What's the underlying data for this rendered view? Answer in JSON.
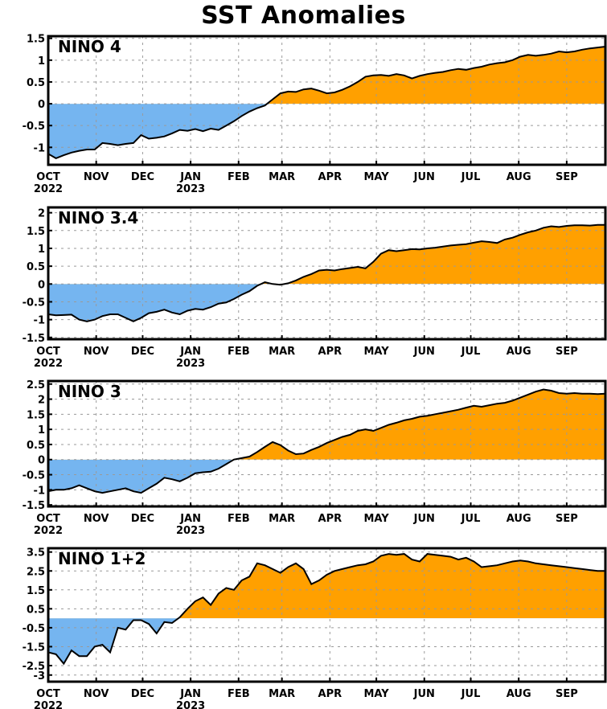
{
  "page": {
    "title": "SST Anomalies"
  },
  "chart_data": [
    {
      "type": "area",
      "title": "NINO 4",
      "ylim": [
        -1.4,
        1.55
      ],
      "yticks": [
        -1,
        -0.5,
        0,
        0.5,
        1,
        1.5
      ],
      "ytick_labels": [
        "-1",
        "-0.5",
        "0",
        "0.5",
        "1",
        "1.5"
      ],
      "grid": true,
      "x": [
        0,
        5,
        10,
        15,
        20,
        25,
        30,
        35,
        40,
        45,
        50,
        55,
        60,
        65,
        70,
        75,
        80,
        85,
        90,
        95,
        100,
        105,
        110,
        115,
        120,
        125,
        130,
        135,
        140,
        145,
        150,
        155,
        160,
        165,
        170,
        175,
        180,
        185,
        190,
        195,
        200,
        205,
        210,
        215,
        220,
        225,
        230,
        235,
        240,
        245,
        250,
        255,
        260,
        265,
        270,
        275,
        280,
        285,
        290,
        295,
        300,
        305,
        310,
        315,
        320,
        325,
        330,
        335,
        340,
        345,
        350,
        355,
        360
      ],
      "values": [
        -1.15,
        -1.25,
        -1.18,
        -1.12,
        -1.08,
        -1.05,
        -1.05,
        -0.9,
        -0.92,
        -0.95,
        -0.92,
        -0.9,
        -0.72,
        -0.8,
        -0.78,
        -0.75,
        -0.68,
        -0.6,
        -0.62,
        -0.58,
        -0.63,
        -0.57,
        -0.6,
        -0.5,
        -0.4,
        -0.28,
        -0.18,
        -0.1,
        -0.04,
        0.1,
        0.24,
        0.28,
        0.27,
        0.33,
        0.35,
        0.3,
        0.24,
        0.26,
        0.32,
        0.4,
        0.5,
        0.62,
        0.65,
        0.66,
        0.64,
        0.68,
        0.65,
        0.58,
        0.64,
        0.68,
        0.71,
        0.73,
        0.77,
        0.8,
        0.78,
        0.82,
        0.85,
        0.9,
        0.93,
        0.95,
        1.0,
        1.08,
        1.12,
        1.1,
        1.12,
        1.15,
        1.2,
        1.18,
        1.2,
        1.24,
        1.27,
        1.29,
        1.31
      ],
      "colors": {
        "positive": "#ffa000",
        "negative": "#75b5f0"
      }
    },
    {
      "type": "area",
      "title": "NINO 3.4",
      "ylim": [
        -1.55,
        2.15
      ],
      "yticks": [
        -1.5,
        -1,
        -0.5,
        0,
        0.5,
        1,
        1.5,
        2
      ],
      "ytick_labels": [
        "-1.5",
        "-1",
        "-0.5",
        "0",
        "0.5",
        "1",
        "1.5",
        "2"
      ],
      "grid": true,
      "x": [
        0,
        5,
        10,
        15,
        20,
        25,
        30,
        35,
        40,
        45,
        50,
        55,
        60,
        65,
        70,
        75,
        80,
        85,
        90,
        95,
        100,
        105,
        110,
        115,
        120,
        125,
        130,
        135,
        140,
        145,
        150,
        155,
        160,
        165,
        170,
        175,
        180,
        185,
        190,
        195,
        200,
        205,
        210,
        215,
        220,
        225,
        230,
        235,
        240,
        245,
        250,
        255,
        260,
        265,
        270,
        275,
        280,
        285,
        290,
        295,
        300,
        305,
        310,
        315,
        320,
        325,
        330,
        335,
        340,
        345,
        350,
        355,
        360
      ],
      "values": [
        -0.85,
        -0.88,
        -0.87,
        -0.86,
        -1.0,
        -1.05,
        -1.0,
        -0.9,
        -0.85,
        -0.85,
        -0.95,
        -1.05,
        -0.95,
        -0.82,
        -0.78,
        -0.72,
        -0.8,
        -0.85,
        -0.75,
        -0.7,
        -0.72,
        -0.65,
        -0.55,
        -0.52,
        -0.42,
        -0.3,
        -0.2,
        -0.05,
        0.05,
        0.0,
        -0.02,
        0.02,
        0.1,
        0.2,
        0.28,
        0.38,
        0.4,
        0.38,
        0.42,
        0.45,
        0.48,
        0.44,
        0.62,
        0.85,
        0.95,
        0.92,
        0.95,
        0.98,
        0.97,
        1.0,
        1.02,
        1.05,
        1.08,
        1.1,
        1.12,
        1.16,
        1.2,
        1.18,
        1.15,
        1.25,
        1.3,
        1.38,
        1.45,
        1.5,
        1.58,
        1.62,
        1.6,
        1.63,
        1.65,
        1.65,
        1.64,
        1.66,
        1.66
      ],
      "colors": {
        "positive": "#ffa000",
        "negative": "#75b5f0"
      }
    },
    {
      "type": "area",
      "title": "NINO 3",
      "ylim": [
        -1.55,
        2.6
      ],
      "yticks": [
        -1.5,
        -1,
        -0.5,
        0,
        0.5,
        1,
        1.5,
        2,
        2.5
      ],
      "ytick_labels": [
        "-1.5",
        "-1",
        "-0.5",
        "0",
        "0.5",
        "1",
        "1.5",
        "2",
        "2.5"
      ],
      "grid": true,
      "x": [
        0,
        5,
        10,
        15,
        20,
        25,
        30,
        35,
        40,
        45,
        50,
        55,
        60,
        65,
        70,
        75,
        80,
        85,
        90,
        95,
        100,
        105,
        110,
        115,
        120,
        125,
        130,
        135,
        140,
        145,
        150,
        155,
        160,
        165,
        170,
        175,
        180,
        185,
        190,
        195,
        200,
        205,
        210,
        215,
        220,
        225,
        230,
        235,
        240,
        245,
        250,
        255,
        260,
        265,
        270,
        275,
        280,
        285,
        290,
        295,
        300,
        305,
        310,
        315,
        320,
        325,
        330,
        335,
        340,
        345,
        350,
        355,
        360
      ],
      "values": [
        -1.05,
        -1.0,
        -1.0,
        -0.95,
        -0.85,
        -0.95,
        -1.05,
        -1.1,
        -1.05,
        -1.0,
        -0.95,
        -1.05,
        -1.1,
        -0.95,
        -0.8,
        -0.6,
        -0.65,
        -0.72,
        -0.6,
        -0.45,
        -0.42,
        -0.4,
        -0.3,
        -0.15,
        0.0,
        0.05,
        0.1,
        0.25,
        0.42,
        0.58,
        0.48,
        0.3,
        0.18,
        0.2,
        0.32,
        0.42,
        0.55,
        0.65,
        0.75,
        0.82,
        0.95,
        1.0,
        0.95,
        1.05,
        1.15,
        1.22,
        1.3,
        1.35,
        1.42,
        1.45,
        1.5,
        1.55,
        1.6,
        1.65,
        1.72,
        1.78,
        1.75,
        1.8,
        1.85,
        1.88,
        1.95,
        2.05,
        2.15,
        2.25,
        2.32,
        2.28,
        2.2,
        2.18,
        2.2,
        2.18,
        2.18,
        2.17,
        2.18
      ],
      "colors": {
        "positive": "#ffa000",
        "negative": "#75b5f0"
      }
    },
    {
      "type": "area",
      "title": "NINO 1+2",
      "ylim": [
        -3.35,
        3.7
      ],
      "yticks": [
        -3,
        -2.5,
        -1.5,
        -0.5,
        0.5,
        1.5,
        2.5,
        3.5
      ],
      "ytick_labels": [
        "-3",
        "-2.5",
        "-1.5",
        "-0.5",
        "0.5",
        "1.5",
        "2.5",
        "3.5"
      ],
      "grid": true,
      "x": [
        0,
        5,
        10,
        15,
        20,
        25,
        30,
        35,
        40,
        45,
        50,
        55,
        60,
        65,
        70,
        75,
        80,
        85,
        90,
        95,
        100,
        105,
        110,
        115,
        120,
        125,
        130,
        135,
        140,
        145,
        150,
        155,
        160,
        165,
        170,
        175,
        180,
        185,
        190,
        195,
        200,
        205,
        210,
        215,
        220,
        225,
        230,
        235,
        240,
        245,
        250,
        255,
        260,
        265,
        270,
        275,
        280,
        285,
        290,
        295,
        300,
        305,
        310,
        315,
        320,
        325,
        330,
        335,
        340,
        345,
        350,
        355,
        360
      ],
      "values": [
        -1.8,
        -1.9,
        -2.4,
        -1.7,
        -2.0,
        -2.0,
        -1.5,
        -1.4,
        -1.8,
        -0.5,
        -0.6,
        -0.1,
        -0.1,
        -0.3,
        -0.8,
        -0.2,
        -0.25,
        0.05,
        0.5,
        0.9,
        1.1,
        0.7,
        1.3,
        1.6,
        1.5,
        2.0,
        2.2,
        2.9,
        2.8,
        2.6,
        2.4,
        2.7,
        2.9,
        2.6,
        1.8,
        2.0,
        2.3,
        2.5,
        2.6,
        2.7,
        2.8,
        2.85,
        3.0,
        3.3,
        3.4,
        3.35,
        3.4,
        3.1,
        3.0,
        3.4,
        3.35,
        3.3,
        3.25,
        3.1,
        3.2,
        3.0,
        2.7,
        2.75,
        2.8,
        2.9,
        3.0,
        3.05,
        3.0,
        2.9,
        2.85,
        2.8,
        2.75,
        2.7,
        2.65,
        2.6,
        2.55,
        2.5,
        2.5
      ],
      "colors": {
        "positive": "#ffa000",
        "negative": "#75b5f0"
      }
    }
  ],
  "x_axis": {
    "months": [
      "OCT",
      "NOV",
      "DEC",
      "JAN",
      "FEB",
      "MAR",
      "APR",
      "MAY",
      "JUN",
      "JUL",
      "AUG",
      "SEP"
    ],
    "years": [
      "2022",
      "2023"
    ]
  }
}
